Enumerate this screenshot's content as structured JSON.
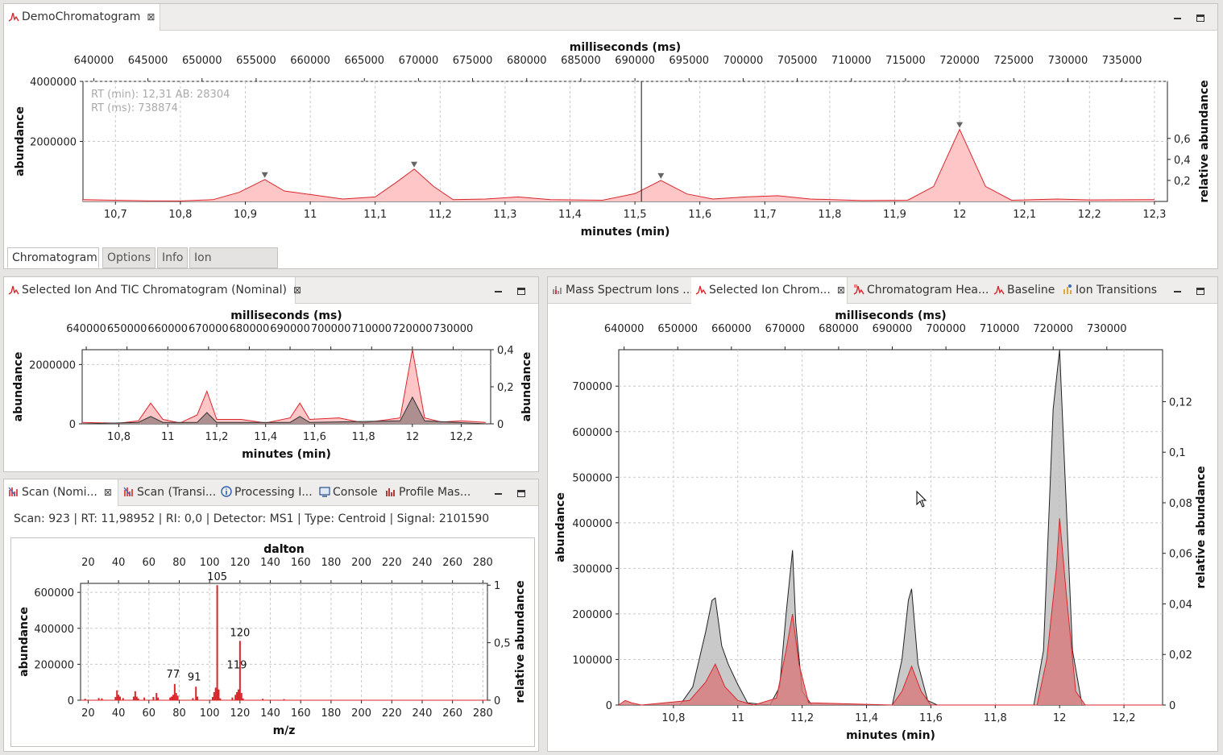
{
  "colors": {
    "red": "#d9262b",
    "redfill": "#ffc6c8",
    "gray": "#bfbfbf",
    "grid": "#c8c8c8"
  },
  "panel1": {
    "tab_label": "DemoChromatogram",
    "close": "⊠",
    "bottom_tabs": [
      "Chromatogram",
      "Options",
      "Info",
      "Ion Transitions"
    ],
    "overlay_line1": "RT (min): 12,31 AB: 28304",
    "overlay_line2": "RT (ms): 738874"
  },
  "panel2": {
    "tab_label": "Selected Ion And TIC Chromatogram (Nominal)",
    "close": "⊠"
  },
  "panel3": {
    "tabs": [
      {
        "label": "Scan (Nomi...",
        "icon": "scan-icon",
        "close": "⊠"
      },
      {
        "label": "Scan (Transi...",
        "icon": "scan-icon"
      },
      {
        "label": "Processing I...",
        "icon": "info-icon"
      },
      {
        "label": "Console",
        "icon": "console-icon"
      },
      {
        "label": "Profile Mas...",
        "icon": "spectrum-icon"
      }
    ],
    "info": "Scan: 923 | RT: 11,98952 | RI: 0,0 | Detector: MS1 | Type: Centroid | Signal: 2101590"
  },
  "panel4": {
    "tabs": [
      {
        "label": "Mass Spectrum Ions ...",
        "icon": "spectrum-icon"
      },
      {
        "label": "Selected Ion Chrom...",
        "icon": "chromatogram-icon",
        "close": "⊠"
      },
      {
        "label": "Chromatogram Hea...",
        "icon": "heatmap-icon"
      },
      {
        "label": "Baseline",
        "icon": "chromatogram-icon"
      },
      {
        "label": "Ion Transitions",
        "icon": "transitions-icon"
      }
    ]
  },
  "chart_data": [
    {
      "type": "area",
      "title": "",
      "xlabel": "minutes (min)",
      "x2label": "milliseconds (ms)",
      "ylabel": "abundance",
      "y2label": "relative abundance",
      "xlim": [
        10.65,
        12.32
      ],
      "ylim": [
        0,
        4000000
      ],
      "xticks": [
        10.7,
        10.8,
        10.9,
        11,
        11.1,
        11.2,
        11.3,
        11.4,
        11.5,
        11.6,
        11.7,
        11.8,
        11.9,
        12,
        12.1,
        12.2,
        12.3
      ],
      "xtick_labels": [
        "10,7",
        "10,8",
        "10,9",
        "11",
        "11,1",
        "11,2",
        "11,3",
        "11,4",
        "11,5",
        "11,6",
        "11,7",
        "11,8",
        "11,9",
        "12",
        "12,1",
        "12,2",
        "12,3"
      ],
      "x2ticks": [
        "640000",
        "645000",
        "650000",
        "655000",
        "660000",
        "665000",
        "670000",
        "675000",
        "680000",
        "685000",
        "690000",
        "695000",
        "700000",
        "705000",
        "710000",
        "715000",
        "720000",
        "725000",
        "730000",
        "735000"
      ],
      "yticks": [
        2000000,
        4000000
      ],
      "ytick_labels": [
        "2000000",
        "4000000"
      ],
      "y2ticks": [
        "0,2",
        "0,4",
        "0,6"
      ],
      "cursor_x": 11.51,
      "peaks": [
        {
          "x": 10.93,
          "y": 730000
        },
        {
          "x": 11.16,
          "y": 1080000
        },
        {
          "x": 11.54,
          "y": 700000
        },
        {
          "x": 12.0,
          "y": 2400000
        }
      ],
      "series": [
        {
          "values": [
            [
              10.65,
              60000
            ],
            [
              10.7,
              40000
            ],
            [
              10.75,
              20000
            ],
            [
              10.8,
              15000
            ],
            [
              10.85,
              60000
            ],
            [
              10.89,
              300000
            ],
            [
              10.93,
              730000
            ],
            [
              10.96,
              350000
            ],
            [
              11.0,
              230000
            ],
            [
              11.05,
              80000
            ],
            [
              11.1,
              150000
            ],
            [
              11.13,
              600000
            ],
            [
              11.16,
              1080000
            ],
            [
              11.19,
              500000
            ],
            [
              11.22,
              60000
            ],
            [
              11.27,
              80000
            ],
            [
              11.32,
              150000
            ],
            [
              11.37,
              60000
            ],
            [
              11.45,
              40000
            ],
            [
              11.5,
              260000
            ],
            [
              11.54,
              700000
            ],
            [
              11.58,
              250000
            ],
            [
              11.62,
              80000
            ],
            [
              11.67,
              150000
            ],
            [
              11.72,
              190000
            ],
            [
              11.77,
              80000
            ],
            [
              11.85,
              30000
            ],
            [
              11.92,
              40000
            ],
            [
              11.96,
              500000
            ],
            [
              12.0,
              2400000
            ],
            [
              12.04,
              500000
            ],
            [
              12.08,
              40000
            ],
            [
              12.15,
              80000
            ],
            [
              12.2,
              50000
            ],
            [
              12.3,
              60000
            ]
          ]
        }
      ]
    },
    {
      "type": "area",
      "title": "",
      "xlabel": "minutes (min)",
      "x2label": "milliseconds (ms)",
      "ylabel": "abundance",
      "y2label": "abundance",
      "xlim": [
        10.65,
        12.32
      ],
      "ylim": [
        0,
        2500000
      ],
      "xtick_labels": [
        "10,8",
        "11",
        "11,2",
        "11,4",
        "11,6",
        "11,8",
        "12",
        "12,2"
      ],
      "x2ticks": [
        "640000",
        "650000",
        "660000",
        "670000",
        "680000",
        "690000",
        "700000",
        "710000",
        "720000",
        "730000"
      ],
      "ytick_labels": [
        "0",
        "2000000"
      ],
      "y2ticks": [
        "0",
        "0,2",
        "0,4"
      ],
      "series": [
        {
          "values": [
            [
              10.65,
              50000
            ],
            [
              10.8,
              20000
            ],
            [
              10.88,
              100000
            ],
            [
              10.93,
              700000
            ],
            [
              10.98,
              150000
            ],
            [
              11.05,
              30000
            ],
            [
              11.12,
              300000
            ],
            [
              11.16,
              1100000
            ],
            [
              11.2,
              150000
            ],
            [
              11.3,
              150000
            ],
            [
              11.4,
              30000
            ],
            [
              11.5,
              200000
            ],
            [
              11.54,
              700000
            ],
            [
              11.58,
              150000
            ],
            [
              11.7,
              200000
            ],
            [
              11.8,
              30000
            ],
            [
              11.95,
              200000
            ],
            [
              12.0,
              2500000
            ],
            [
              12.05,
              200000
            ],
            [
              12.12,
              60000
            ],
            [
              12.2,
              100000
            ],
            [
              12.3,
              50000
            ]
          ]
        },
        {
          "values": [
            [
              10.65,
              0
            ],
            [
              10.88,
              50000
            ],
            [
              10.93,
              250000
            ],
            [
              10.98,
              50000
            ],
            [
              11.12,
              50000
            ],
            [
              11.16,
              380000
            ],
            [
              11.2,
              50000
            ],
            [
              11.5,
              50000
            ],
            [
              11.54,
              250000
            ],
            [
              11.58,
              50000
            ],
            [
              11.95,
              100000
            ],
            [
              12.0,
              900000
            ],
            [
              12.05,
              100000
            ],
            [
              12.3,
              0
            ]
          ]
        }
      ]
    },
    {
      "type": "bar",
      "title": "",
      "xlabel": "m/z",
      "x2label": "dalton",
      "ylabel": "abundance",
      "y2label": "relative abundance",
      "xlim": [
        15,
        283
      ],
      "ylim": [
        0,
        650000
      ],
      "xtick_labels": [
        "20",
        "40",
        "60",
        "80",
        "100",
        "120",
        "140",
        "160",
        "180",
        "200",
        "220",
        "240",
        "260",
        "280"
      ],
      "ytick_labels": [
        "0",
        "200000",
        "400000",
        "600000"
      ],
      "y2ticks": [
        "0",
        "0,5",
        "1"
      ],
      "labeled_peaks": [
        {
          "mz": 77,
          "label": "77"
        },
        {
          "mz": 91,
          "label": "91"
        },
        {
          "mz": 105,
          "label": "105"
        },
        {
          "mz": 119,
          "label": "119"
        },
        {
          "mz": 120,
          "label": "120"
        }
      ],
      "values": [
        [
          18,
          8000
        ],
        [
          27,
          12000
        ],
        [
          29,
          10000
        ],
        [
          38,
          18000
        ],
        [
          39,
          55000
        ],
        [
          40,
          30000
        ],
        [
          41,
          20000
        ],
        [
          43,
          12000
        ],
        [
          50,
          20000
        ],
        [
          51,
          50000
        ],
        [
          52,
          20000
        ],
        [
          53,
          10000
        ],
        [
          57,
          15000
        ],
        [
          63,
          18000
        ],
        [
          65,
          40000
        ],
        [
          66,
          15000
        ],
        [
          74,
          15000
        ],
        [
          75,
          20000
        ],
        [
          76,
          30000
        ],
        [
          77,
          90000
        ],
        [
          78,
          40000
        ],
        [
          79,
          25000
        ],
        [
          89,
          12000
        ],
        [
          91,
          75000
        ],
        [
          92,
          20000
        ],
        [
          102,
          18000
        ],
        [
          103,
          45000
        ],
        [
          104,
          70000
        ],
        [
          105,
          640000
        ],
        [
          106,
          60000
        ],
        [
          107,
          10000
        ],
        [
          115,
          15000
        ],
        [
          117,
          30000
        ],
        [
          118,
          45000
        ],
        [
          119,
          60000
        ],
        [
          120,
          330000
        ],
        [
          121,
          40000
        ],
        [
          122,
          10000
        ],
        [
          135,
          8000
        ],
        [
          149,
          6000
        ]
      ]
    },
    {
      "type": "area",
      "title": "",
      "xlabel": "minutes (min)",
      "x2label": "milliseconds (ms)",
      "ylabel": "abundance",
      "y2label": "relative abundance",
      "xlim": [
        10.63,
        12.32
      ],
      "ylim": [
        0,
        780000
      ],
      "xtick_labels": [
        "10,8",
        "11",
        "11,2",
        "11,4",
        "11,6",
        "11,8",
        "12",
        "12,2"
      ],
      "x2ticks": [
        "640000",
        "650000",
        "660000",
        "670000",
        "680000",
        "690000",
        "700000",
        "710000",
        "720000",
        "730000"
      ],
      "ytick_labels": [
        "0",
        "100000",
        "200000",
        "300000",
        "400000",
        "500000",
        "600000",
        "700000"
      ],
      "y2ticks": [
        "0",
        "0,02",
        "0,04",
        "0,06",
        "0,08",
        "0,1",
        "0,12"
      ],
      "series": [
        {
          "name": "",
          "values": [
            [
              10.63,
              0
            ],
            [
              10.82,
              0
            ],
            [
              10.86,
              40000
            ],
            [
              10.9,
              160000
            ],
            [
              10.92,
              230000
            ],
            [
              10.93,
              235000
            ],
            [
              10.95,
              130000
            ],
            [
              10.97,
              90000
            ],
            [
              11.0,
              45000
            ],
            [
              11.03,
              5000
            ],
            [
              11.1,
              0
            ],
            [
              11.13,
              40000
            ],
            [
              11.15,
              200000
            ],
            [
              11.17,
              340000
            ],
            [
              11.18,
              180000
            ],
            [
              11.2,
              30000
            ],
            [
              11.23,
              0
            ],
            [
              11.48,
              0
            ],
            [
              11.51,
              100000
            ],
            [
              11.53,
              230000
            ],
            [
              11.54,
              255000
            ],
            [
              11.56,
              90000
            ],
            [
              11.59,
              10000
            ],
            [
              11.62,
              0
            ],
            [
              11.92,
              0
            ],
            [
              11.95,
              120000
            ],
            [
              11.98,
              650000
            ],
            [
              12.0,
              780000
            ],
            [
              12.02,
              450000
            ],
            [
              12.04,
              120000
            ],
            [
              12.07,
              0
            ],
            [
              12.32,
              0
            ]
          ]
        },
        {
          "name": "",
          "values": [
            [
              10.63,
              0
            ],
            [
              10.65,
              10000
            ],
            [
              10.67,
              5000
            ],
            [
              10.7,
              0
            ],
            [
              10.85,
              10000
            ],
            [
              10.9,
              50000
            ],
            [
              10.93,
              90000
            ],
            [
              10.96,
              40000
            ],
            [
              11.0,
              10000
            ],
            [
              11.05,
              0
            ],
            [
              11.12,
              15000
            ],
            [
              11.15,
              120000
            ],
            [
              11.17,
              200000
            ],
            [
              11.19,
              90000
            ],
            [
              11.22,
              5000
            ],
            [
              11.48,
              0
            ],
            [
              11.51,
              30000
            ],
            [
              11.54,
              85000
            ],
            [
              11.57,
              30000
            ],
            [
              11.6,
              0
            ],
            [
              11.93,
              0
            ],
            [
              11.96,
              100000
            ],
            [
              11.99,
              300000
            ],
            [
              12.0,
              410000
            ],
            [
              12.02,
              250000
            ],
            [
              12.05,
              30000
            ],
            [
              12.08,
              0
            ],
            [
              12.32,
              0
            ]
          ]
        }
      ]
    }
  ]
}
